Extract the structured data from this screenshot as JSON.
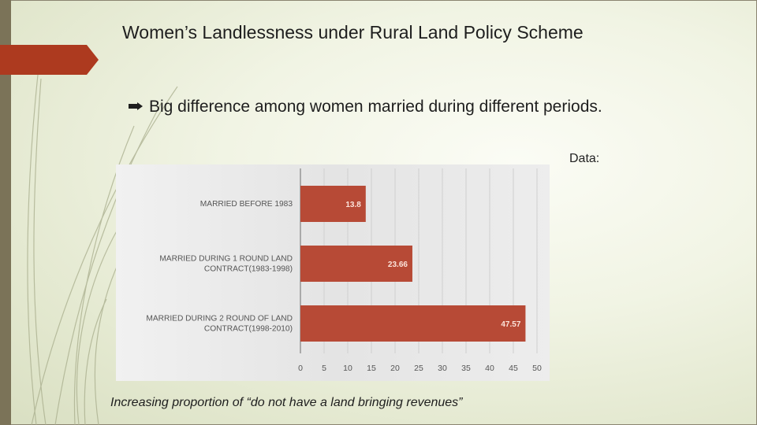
{
  "slide": {
    "title": "Women’s Landlessness under Rural Land Policy Scheme",
    "bullet": "Big difference among women married during different periods.",
    "data_label": "Data:",
    "caption": "Increasing proportion of “do not have a land bringing revenues”"
  },
  "colors": {
    "accent": "#ad3a1f",
    "bar": "#b74a36",
    "bar_label": "#fbe3da",
    "axis_label": "#555555"
  },
  "chart_data": {
    "type": "bar",
    "orientation": "horizontal",
    "categories": [
      [
        "MARRIED BEFORE 1983"
      ],
      [
        "MARRIED DURING 1 ROUND LAND",
        "CONTRACT(1983-1998)"
      ],
      [
        "MARRIED DURING 2 ROUND OF LAND",
        "CONTRACT(1998-2010)"
      ]
    ],
    "values": [
      13.8,
      23.66,
      47.57
    ],
    "value_labels": [
      "13.8",
      "23.66",
      "47.57"
    ],
    "xlim": [
      0,
      50
    ],
    "xticks": [
      "0",
      "5",
      "10",
      "15",
      "20",
      "25",
      "30",
      "35",
      "40",
      "45",
      "50"
    ],
    "grid": true
  }
}
